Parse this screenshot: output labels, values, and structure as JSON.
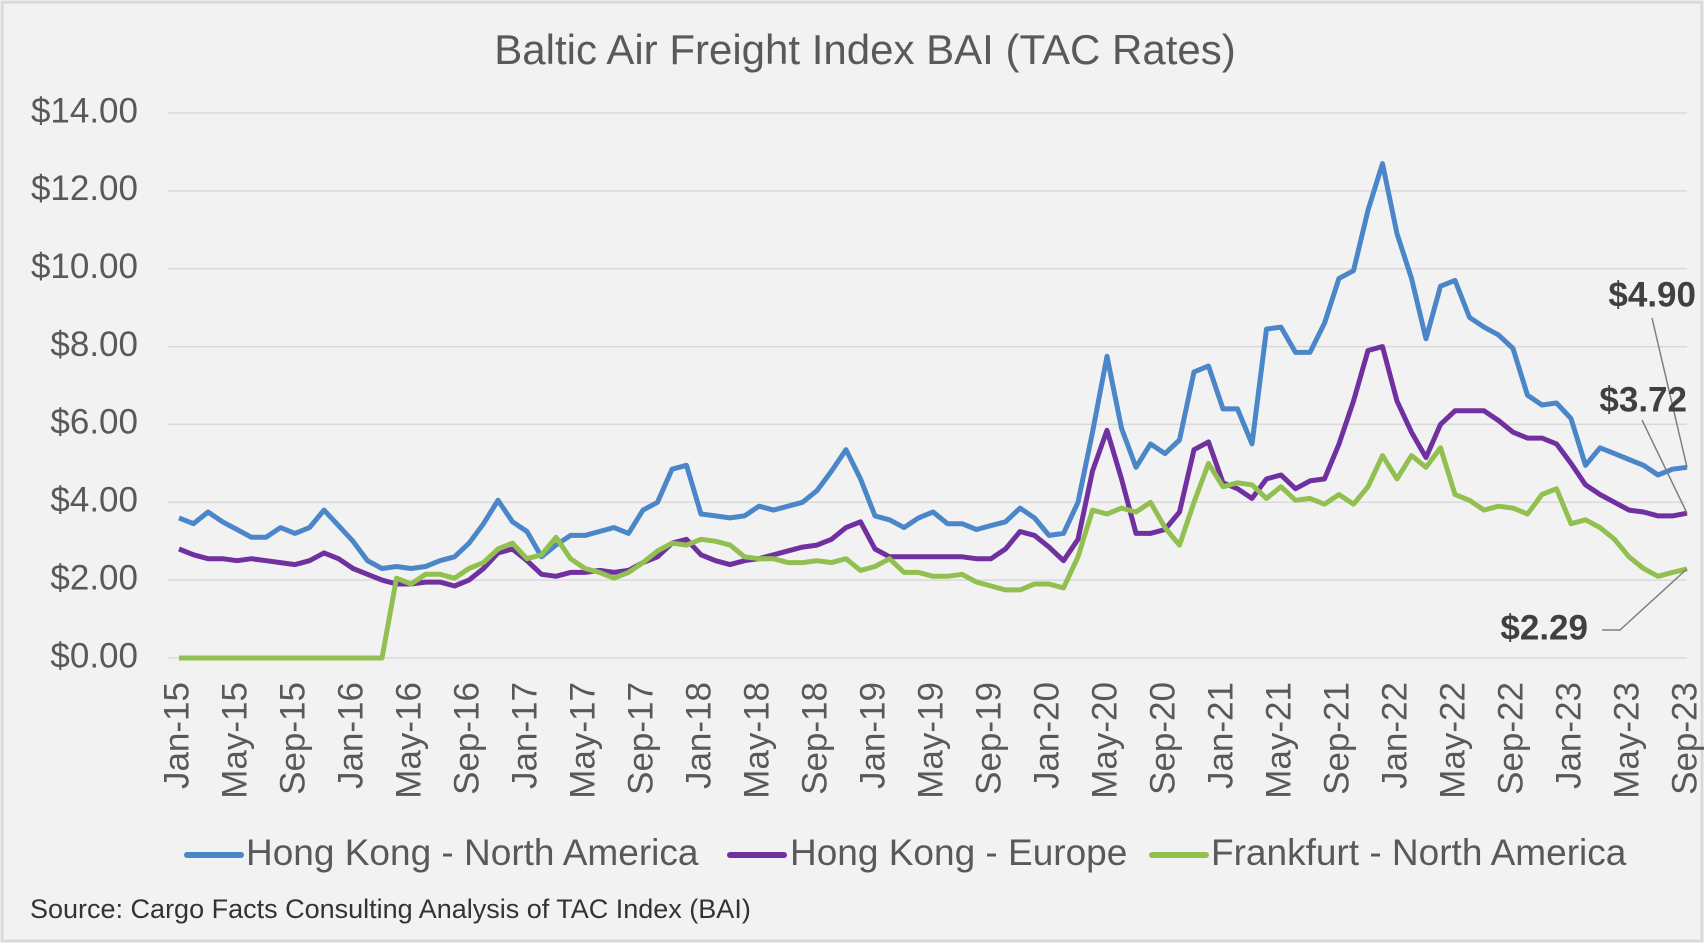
{
  "chart_data": {
    "type": "line",
    "title": "Baltic Air Freight Index BAI (TAC Rates)",
    "source": "Source: Cargo Facts Consulting Analysis of TAC Index (BAI)",
    "categories": [
      "Jan-15",
      null,
      null,
      null,
      "May-15",
      null,
      null,
      null,
      "Sep-15",
      null,
      null,
      null,
      "Jan-16",
      null,
      null,
      null,
      "May-16",
      null,
      null,
      null,
      "Sep-16",
      null,
      null,
      null,
      "Jan-17",
      null,
      null,
      null,
      "May-17",
      null,
      null,
      null,
      "Sep-17",
      null,
      null,
      null,
      "Jan-18",
      null,
      null,
      null,
      "May-18",
      null,
      null,
      null,
      "Sep-18",
      null,
      null,
      null,
      "Jan-19",
      null,
      null,
      null,
      "May-19",
      null,
      null,
      null,
      "Sep-19",
      null,
      null,
      null,
      "Jan-20",
      null,
      null,
      null,
      "May-20",
      null,
      null,
      null,
      "Sep-20",
      null,
      null,
      null,
      "Jan-21",
      null,
      null,
      null,
      "May-21",
      null,
      null,
      null,
      "Sep-21",
      null,
      null,
      null,
      "Jan-22",
      null,
      null,
      null,
      "May-22",
      null,
      null,
      null,
      "Sep-22",
      null,
      null,
      null,
      "Jan-23",
      null,
      null,
      null,
      "May-23",
      null,
      null,
      null,
      "Sep-23"
    ],
    "series": [
      {
        "name": "Hong Kong - North America",
        "color": "#4a86c8",
        "end_label": "$4.90",
        "values": [
          3.6,
          3.45,
          3.75,
          3.5,
          3.3,
          3.1,
          3.1,
          3.35,
          3.2,
          3.35,
          3.8,
          3.4,
          3.0,
          2.5,
          2.3,
          2.35,
          2.3,
          2.35,
          2.5,
          2.6,
          2.95,
          3.45,
          4.05,
          3.5,
          3.25,
          2.6,
          2.9,
          3.15,
          3.15,
          3.25,
          3.35,
          3.2,
          3.8,
          4.0,
          4.85,
          4.95,
          3.7,
          3.65,
          3.6,
          3.65,
          3.9,
          3.8,
          3.9,
          4.0,
          4.3,
          4.8,
          5.35,
          4.6,
          3.65,
          3.55,
          3.35,
          3.6,
          3.75,
          3.45,
          3.45,
          3.3,
          3.4,
          3.5,
          3.85,
          3.6,
          3.15,
          3.2,
          4.0,
          5.8,
          7.75,
          5.9,
          4.9,
          5.5,
          5.25,
          5.6,
          7.35,
          7.5,
          6.4,
          6.4,
          5.5,
          8.45,
          8.5,
          7.85,
          7.85,
          8.6,
          9.75,
          9.95,
          11.5,
          12.7,
          10.9,
          9.75,
          8.2,
          9.55,
          9.7,
          8.75,
          8.5,
          8.3,
          7.95,
          6.75,
          6.5,
          6.55,
          6.15,
          4.95,
          5.4,
          5.25,
          5.1,
          4.95,
          4.7,
          4.85,
          4.9
        ]
      },
      {
        "name": "Hong Kong - Europe",
        "color": "#7030a0",
        "end_label": "$3.72",
        "values": [
          2.8,
          2.65,
          2.55,
          2.55,
          2.5,
          2.55,
          2.5,
          2.45,
          2.4,
          2.5,
          2.7,
          2.55,
          2.3,
          2.15,
          2.0,
          1.9,
          1.9,
          1.95,
          1.95,
          1.85,
          2.0,
          2.3,
          2.7,
          2.8,
          2.5,
          2.15,
          2.1,
          2.2,
          2.2,
          2.25,
          2.2,
          2.25,
          2.45,
          2.6,
          2.95,
          3.05,
          2.65,
          2.5,
          2.4,
          2.5,
          2.55,
          2.65,
          2.75,
          2.85,
          2.9,
          3.05,
          3.35,
          3.5,
          2.8,
          2.6,
          2.6,
          2.6,
          2.6,
          2.6,
          2.6,
          2.55,
          2.55,
          2.8,
          3.25,
          3.15,
          2.85,
          2.5,
          3.05,
          4.8,
          5.85,
          4.6,
          3.2,
          3.2,
          3.3,
          3.75,
          5.35,
          5.55,
          4.5,
          4.35,
          4.1,
          4.6,
          4.7,
          4.35,
          4.55,
          4.6,
          5.5,
          6.6,
          7.9,
          8.0,
          6.6,
          5.8,
          5.15,
          6.0,
          6.35,
          6.35,
          6.35,
          6.1,
          5.8,
          5.65,
          5.65,
          5.5,
          5.0,
          4.45,
          4.2,
          4.0,
          3.8,
          3.75,
          3.65,
          3.65,
          3.72
        ]
      },
      {
        "name": "Frankfurt - North America",
        "color": "#92c050",
        "end_label": "$2.29",
        "values": [
          0,
          0,
          0,
          0,
          0,
          0,
          0,
          0,
          0,
          0,
          0,
          0,
          0,
          0,
          0,
          2.05,
          1.9,
          2.15,
          2.15,
          2.05,
          2.3,
          2.45,
          2.8,
          2.95,
          2.55,
          2.65,
          3.1,
          2.55,
          2.3,
          2.2,
          2.05,
          2.2,
          2.45,
          2.75,
          2.95,
          2.9,
          3.05,
          3.0,
          2.9,
          2.6,
          2.55,
          2.55,
          2.45,
          2.45,
          2.5,
          2.45,
          2.55,
          2.25,
          2.35,
          2.55,
          2.2,
          2.2,
          2.1,
          2.1,
          2.15,
          1.95,
          1.85,
          1.75,
          1.75,
          1.9,
          1.9,
          1.8,
          2.6,
          3.8,
          3.7,
          3.85,
          3.75,
          4.0,
          3.35,
          2.9,
          4.0,
          5.0,
          4.4,
          4.5,
          4.45,
          4.1,
          4.4,
          4.05,
          4.1,
          3.95,
          4.2,
          3.95,
          4.4,
          5.2,
          4.6,
          5.2,
          4.9,
          5.4,
          4.2,
          4.05,
          3.8,
          3.9,
          3.85,
          3.7,
          4.2,
          4.35,
          3.45,
          3.55,
          3.35,
          3.05,
          2.6,
          2.3,
          2.1,
          2.2,
          2.29
        ]
      }
    ],
    "ylim": [
      0,
      14
    ],
    "yticks": [
      {
        "value": 0,
        "label": "$0.00"
      },
      {
        "value": 2,
        "label": "$2.00"
      },
      {
        "value": 4,
        "label": "$4.00"
      },
      {
        "value": 6,
        "label": "$6.00"
      },
      {
        "value": 8,
        "label": "$8.00"
      },
      {
        "value": 10,
        "label": "$10.00"
      },
      {
        "value": 12,
        "label": "$12.00"
      },
      {
        "value": 14,
        "label": "$14.00"
      }
    ],
    "grid": true,
    "legend": "bottom"
  }
}
